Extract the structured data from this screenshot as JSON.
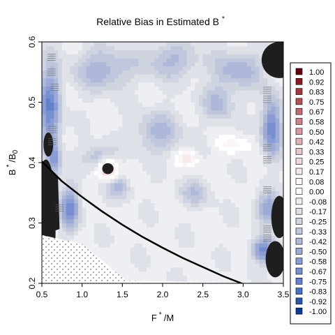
{
  "chart_data": {
    "type": "heatmap",
    "title": "Relative Bias in Estimated B",
    "title_superscript": "*",
    "xlabel": "F",
    "xlabel_superscript": "*",
    "xlabel_suffix": "/M",
    "ylabel": "B",
    "ylabel_superscript": "*",
    "ylabel_suffix": "/B",
    "ylabel_subscript": "0",
    "xlim": [
      0.5,
      3.5
    ],
    "ylim": [
      0.2,
      0.6
    ],
    "x_ticks": [
      "0.5",
      "1.0",
      "1.5",
      "2.0",
      "2.5",
      "3.0",
      "3.5"
    ],
    "y_ticks": [
      "0.2",
      "0.3",
      "0.4",
      "0.5",
      "0.6"
    ],
    "legend": [
      {
        "label": "1.00",
        "color": "#67000d"
      },
      {
        "label": "0.92",
        "color": "#8a1a22"
      },
      {
        "label": "0.83",
        "color": "#a33a40"
      },
      {
        "label": "0.75",
        "color": "#b45258"
      },
      {
        "label": "0.67",
        "color": "#c26a70"
      },
      {
        "label": "0.58",
        "color": "#cd8287"
      },
      {
        "label": "0.50",
        "color": "#d7999d"
      },
      {
        "label": "0.42",
        "color": "#e0b0b3"
      },
      {
        "label": "0.33",
        "color": "#e8c6c8"
      },
      {
        "label": "0.25",
        "color": "#efd9da"
      },
      {
        "label": "0.17",
        "color": "#f5e9ea"
      },
      {
        "label": "0.08",
        "color": "#fbf5f5"
      },
      {
        "label": "0.00",
        "color": "#ffffff"
      },
      {
        "label": "-0.08",
        "color": "#eeeff2"
      },
      {
        "label": "-0.17",
        "color": "#dfe1e8"
      },
      {
        "label": "-0.25",
        "color": "#d0d4e0"
      },
      {
        "label": "-0.33",
        "color": "#c0c7dd"
      },
      {
        "label": "-0.42",
        "color": "#aeb9da"
      },
      {
        "label": "-0.50",
        "color": "#9caad6"
      },
      {
        "label": "-0.58",
        "color": "#8a9cd3"
      },
      {
        "label": "-0.67",
        "color": "#778ecf"
      },
      {
        "label": "-0.75",
        "color": "#6280cb"
      },
      {
        "label": "-0.83",
        "color": "#4a6fc4"
      },
      {
        "label": "-0.92",
        "color": "#2c55b0"
      },
      {
        "label": "-1.00",
        "color": "#0b3b94"
      }
    ],
    "curve": {
      "x": [
        0.5,
        0.75,
        1.0,
        1.25,
        1.5,
        1.75,
        2.0,
        2.25,
        2.5,
        2.75,
        3.0
      ],
      "y": [
        0.402,
        0.369,
        0.343,
        0.319,
        0.297,
        0.277,
        0.259,
        0.242,
        0.227,
        0.212,
        0.199
      ]
    },
    "blobs": [
      {
        "x": 0.6,
        "y": 0.49,
        "rx": 0.13,
        "ry": 0.07,
        "v": -0.6
      },
      {
        "x": 0.85,
        "y": 0.325,
        "rx": 0.12,
        "ry": 0.035,
        "v": -0.55
      },
      {
        "x": 0.65,
        "y": 0.405,
        "rx": 0.08,
        "ry": 0.03,
        "v": -0.4
      },
      {
        "x": 1.25,
        "y": 0.555,
        "rx": 0.35,
        "ry": 0.035,
        "v": -0.35
      },
      {
        "x": 2.1,
        "y": 0.57,
        "rx": 0.35,
        "ry": 0.03,
        "v": -0.3
      },
      {
        "x": 2.95,
        "y": 0.555,
        "rx": 0.3,
        "ry": 0.03,
        "v": -0.35
      },
      {
        "x": 3.35,
        "y": 0.46,
        "rx": 0.12,
        "ry": 0.05,
        "v": -0.6
      },
      {
        "x": 3.3,
        "y": 0.325,
        "rx": 0.15,
        "ry": 0.025,
        "v": -0.45
      },
      {
        "x": 3.25,
        "y": 0.255,
        "rx": 0.15,
        "ry": 0.02,
        "v": -0.55
      },
      {
        "x": 1.95,
        "y": 0.45,
        "rx": 0.3,
        "ry": 0.035,
        "v": -0.3
      },
      {
        "x": 2.7,
        "y": 0.5,
        "rx": 0.2,
        "ry": 0.03,
        "v": -0.3
      },
      {
        "x": 1.2,
        "y": 0.41,
        "rx": 0.2,
        "ry": 0.02,
        "v": -0.3
      },
      {
        "x": 2.4,
        "y": 0.35,
        "rx": 0.2,
        "ry": 0.02,
        "v": -0.25
      },
      {
        "x": 1.45,
        "y": 0.36,
        "rx": 0.15,
        "ry": 0.02,
        "v": -0.3
      },
      {
        "x": 1.32,
        "y": 0.39,
        "rx": 0.12,
        "ry": 0.018,
        "v": 0.5
      },
      {
        "x": 2.3,
        "y": 0.408,
        "rx": 0.12,
        "ry": 0.012,
        "v": 0.3
      },
      {
        "x": 2.9,
        "y": 0.43,
        "rx": 0.2,
        "ry": 0.015,
        "v": 0.15
      }
    ],
    "dark_regions": [
      {
        "x": 1.32,
        "y": 0.39,
        "rx": 0.07,
        "ry": 0.009
      },
      {
        "x": 0.55,
        "y": 0.36,
        "rx": 0.09,
        "ry": 0.045
      },
      {
        "x": 0.55,
        "y": 0.27,
        "rx": 0.06,
        "ry": 0.07
      },
      {
        "x": 3.45,
        "y": 0.57,
        "rx": 0.22,
        "ry": 0.03
      },
      {
        "x": 3.45,
        "y": 0.31,
        "rx": 0.1,
        "ry": 0.035
      },
      {
        "x": 3.4,
        "y": 0.24,
        "rx": 0.12,
        "ry": 0.03
      },
      {
        "x": 0.58,
        "y": 0.43,
        "rx": 0.06,
        "ry": 0.02
      },
      {
        "x": 0.62,
        "y": 0.285,
        "rx": 0.05,
        "ry": 0.04
      }
    ]
  }
}
